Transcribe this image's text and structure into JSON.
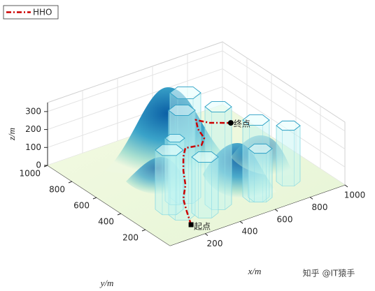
{
  "chart_data": {
    "type": "line3d",
    "xlabel": "x/m",
    "ylabel": "y/m",
    "zlabel": "z/m",
    "xlim": [
      0,
      1000
    ],
    "ylim": [
      0,
      1000
    ],
    "zlim": [
      0,
      350
    ],
    "xticks": [
      200,
      400,
      600,
      800,
      1000
    ],
    "yticks": [
      200,
      400,
      600,
      800,
      1000
    ],
    "zticks": [
      0,
      100,
      200,
      300
    ],
    "grid": true,
    "legend": "upper left",
    "series": [
      {
        "name": "HHO",
        "color": "#cc0000",
        "x": [
          147,
          216,
          265,
          353,
          425,
          504,
          563,
          640,
          690,
          718,
          762,
          798,
          876
        ],
        "y": [
          38,
          177,
          270,
          378,
          498,
          611,
          679,
          657,
          706,
          797,
          877,
          815,
          755
        ],
        "z": [
          50,
          50,
          50,
          50,
          50,
          50,
          50,
          50,
          50,
          50,
          50,
          50,
          50
        ]
      }
    ],
    "annotations": [
      "起点",
      "终点"
    ],
    "watermark": "知乎 @IT猿手"
  }
}
